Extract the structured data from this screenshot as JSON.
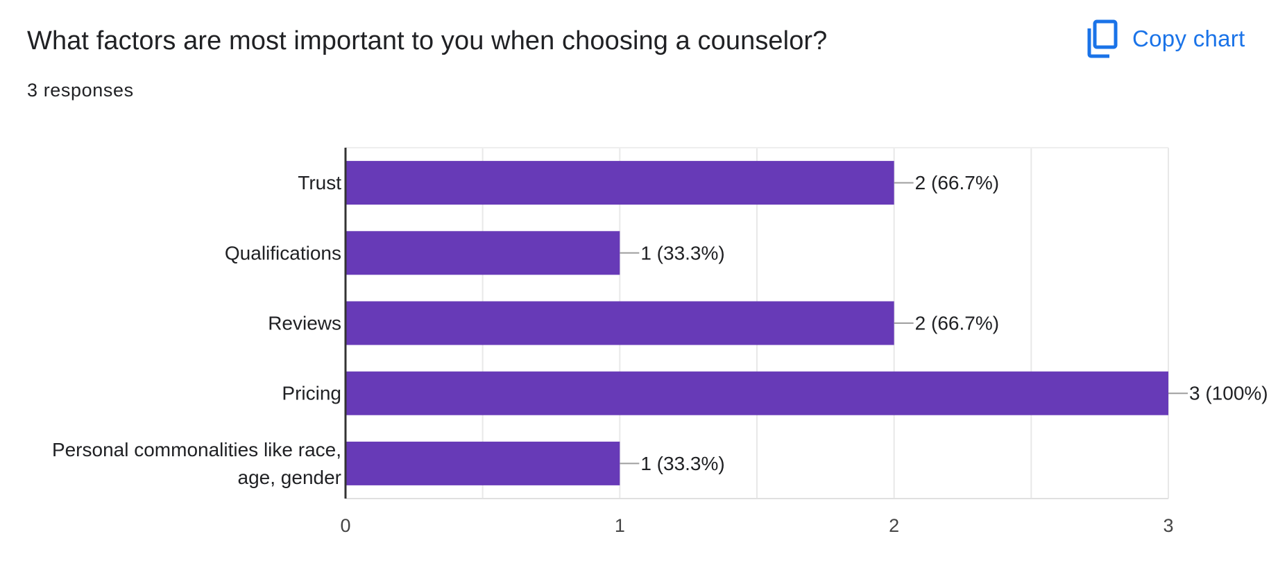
{
  "header": {
    "title": "What factors are most important to you when choosing a counselor?",
    "responses": "3 responses",
    "copy_label": "Copy chart",
    "copy_icon": "copy-icon",
    "accent_color": "#1a73e8"
  },
  "chart_data": {
    "type": "bar",
    "orientation": "horizontal",
    "categories": [
      [
        "Trust"
      ],
      [
        "Qualifications"
      ],
      [
        "Reviews"
      ],
      [
        "Pricing"
      ],
      [
        "Personal commonalities like race,",
        "age, gender"
      ]
    ],
    "values": [
      2,
      1,
      2,
      3,
      1
    ],
    "labels": [
      "2 (66.7%)",
      "1 (33.3%)",
      "2 (66.7%)",
      "3 (100%)",
      "1 (33.3%)"
    ],
    "xlim": [
      0,
      3
    ],
    "xticks": [
      "0",
      "1",
      "2",
      "3"
    ],
    "bar_color": "#673ab7",
    "grid": true,
    "legend": "none"
  }
}
